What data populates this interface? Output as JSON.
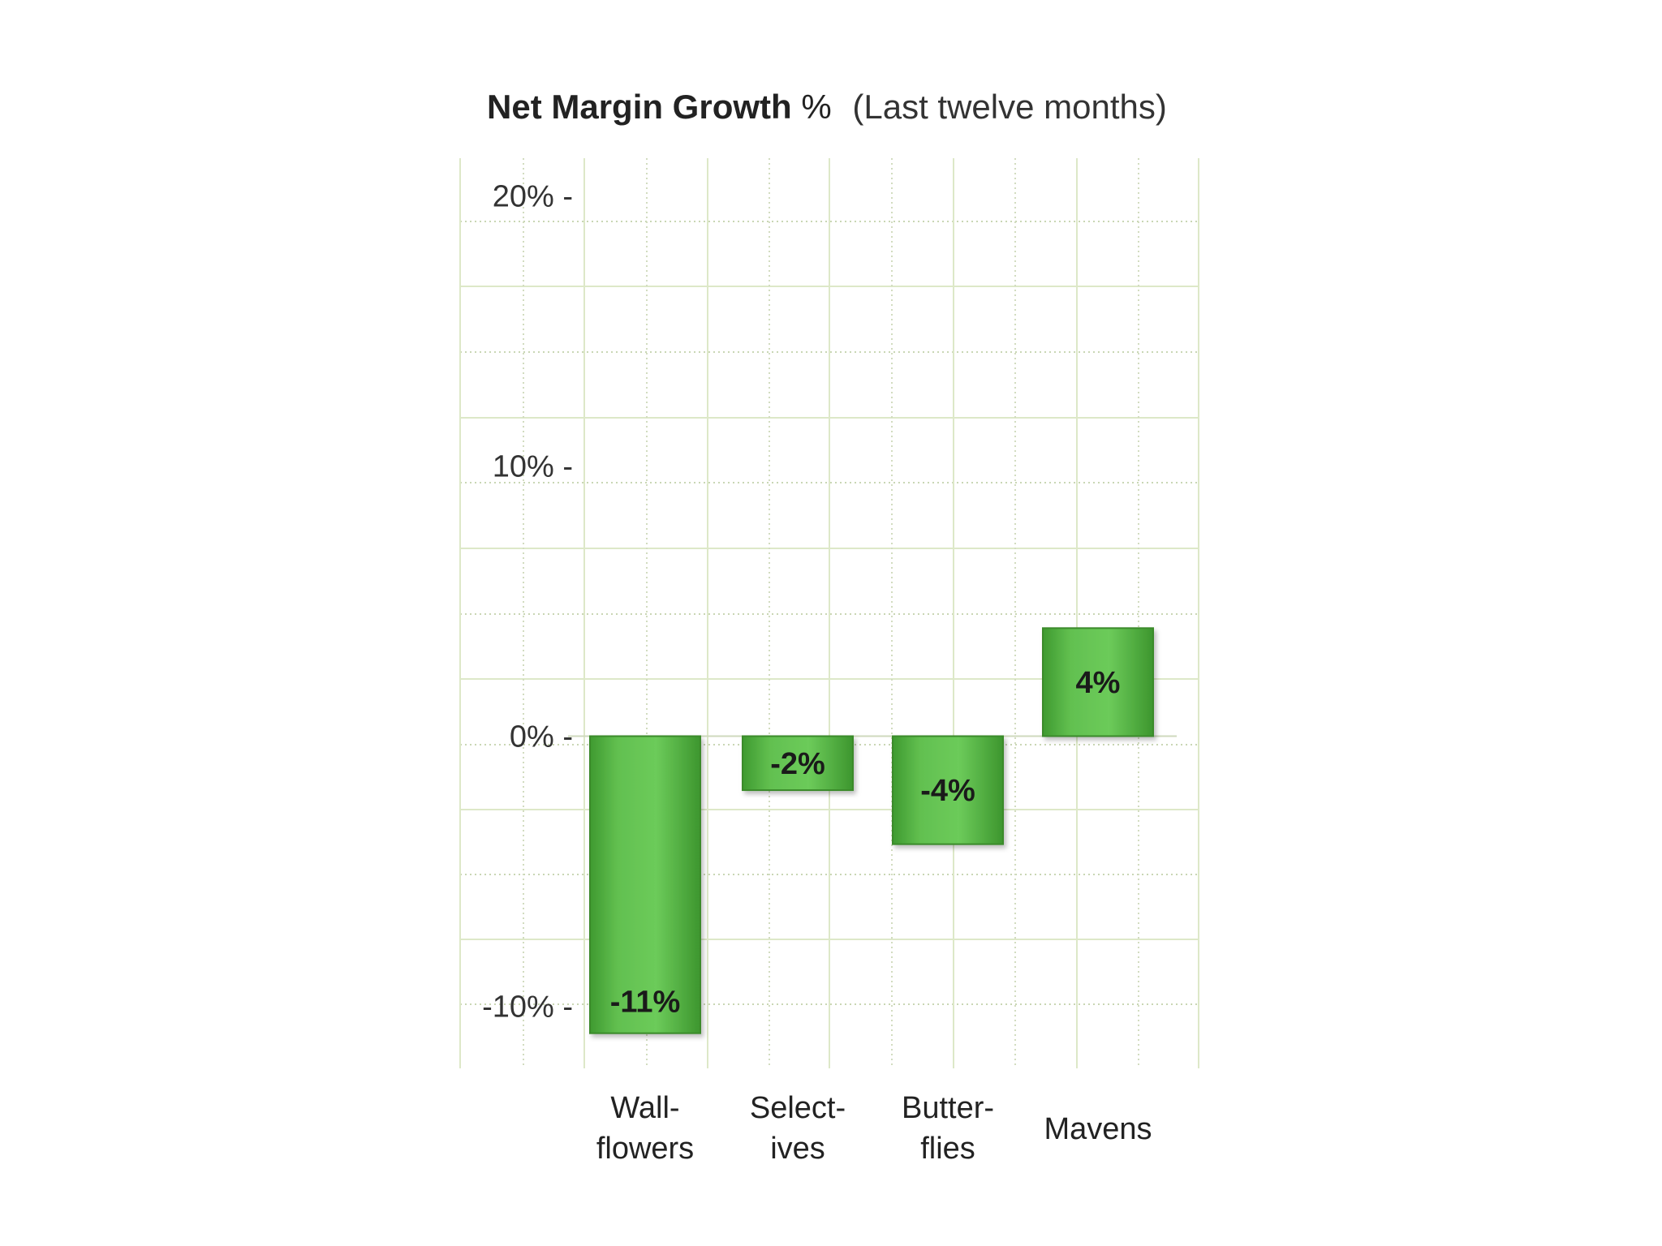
{
  "chart_data": {
    "type": "bar",
    "title_bold": "Net Margin Growth",
    "title_pct": "%",
    "subtitle": "(Last twelve months)",
    "categories": [
      {
        "line1": "Wall-",
        "line2": "flowers"
      },
      {
        "line1": "Select-",
        "line2": "ives"
      },
      {
        "line1": "Butter-",
        "line2": "flies"
      },
      {
        "line1": "Mavens",
        "line2": ""
      }
    ],
    "values": [
      -11,
      -2,
      -4,
      4
    ],
    "value_labels": [
      "-11%",
      "-2%",
      "-4%",
      "4%"
    ],
    "yticks": [
      {
        "value": 20,
        "label": "20% -"
      },
      {
        "value": 10,
        "label": "10% -"
      },
      {
        "value": 0,
        "label": "0% -"
      },
      {
        "value": -10,
        "label": "-10% -"
      }
    ],
    "ylim": [
      -12.3,
      21.4
    ],
    "grid": true,
    "bar_color": "#5cb84a",
    "grid_color": "#dde8c8"
  }
}
